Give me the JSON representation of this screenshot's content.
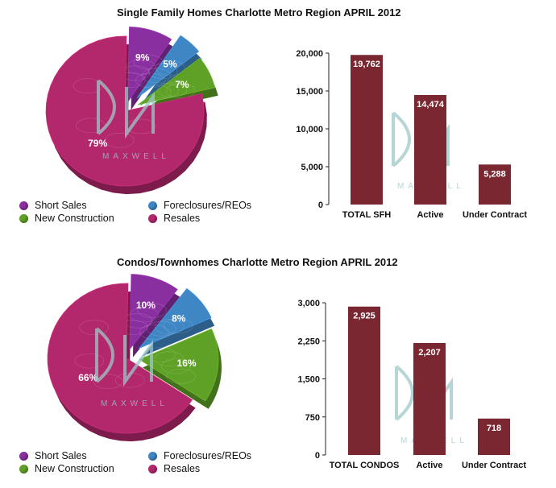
{
  "colors": {
    "short_sales": "#8a2fa0",
    "foreclosures": "#3f86c4",
    "new_construction": "#5fa127",
    "resales": "#b3286c",
    "bar": "#7b2731",
    "watermark": "#9ec8c8"
  },
  "watermark_text": "MAXWELL",
  "chart_data": [
    {
      "type": "pie",
      "title": "Single Family Homes Charlotte Metro Region APRIL 2012",
      "slices": [
        {
          "name": "Short Sales",
          "value": 9,
          "label": "9%"
        },
        {
          "name": "Foreclosures/REOs",
          "value": 5,
          "label": "5%"
        },
        {
          "name": "New Construction",
          "value": 7,
          "label": "7%"
        },
        {
          "name": "Resales",
          "value": 79,
          "label": "79%"
        }
      ],
      "legend": [
        "Short Sales",
        "Foreclosures/REOs",
        "New Construction",
        "Resales"
      ],
      "legend_position": "bottom"
    },
    {
      "type": "bar",
      "categories": [
        "TOTAL SFH",
        "Active",
        "Under Contract"
      ],
      "values": [
        19762,
        14474,
        5288
      ],
      "value_labels": [
        "19,762",
        "14,474",
        "5,288"
      ],
      "yticks": [
        0,
        5000,
        10000,
        15000,
        20000
      ],
      "ytick_labels": [
        "0",
        "5,000",
        "10,000",
        "15,000",
        "20,000"
      ],
      "ylim": [
        0,
        20000
      ],
      "grid": false
    },
    {
      "type": "pie",
      "title": "Condos/Townhomes Charlotte Metro Region APRIL 2012",
      "slices": [
        {
          "name": "Short Sales",
          "value": 10,
          "label": "10%"
        },
        {
          "name": "Foreclosures/REOs",
          "value": 8,
          "label": "8%"
        },
        {
          "name": "New Construction",
          "value": 16,
          "label": "16%"
        },
        {
          "name": "Resales",
          "value": 66,
          "label": "66%"
        }
      ],
      "legend": [
        "Short Sales",
        "Foreclosures/REOs",
        "New Construction",
        "Resales"
      ],
      "legend_position": "bottom"
    },
    {
      "type": "bar",
      "categories": [
        "TOTAL CONDOS",
        "Active",
        "Under Contract"
      ],
      "values": [
        2925,
        2207,
        718
      ],
      "value_labels": [
        "2,925",
        "2,207",
        "718"
      ],
      "yticks": [
        0,
        750,
        1500,
        2250,
        3000
      ],
      "ytick_labels": [
        "0",
        "750",
        "1,500",
        "2,250",
        "3,000"
      ],
      "ylim": [
        0,
        3000
      ],
      "grid": false
    }
  ]
}
